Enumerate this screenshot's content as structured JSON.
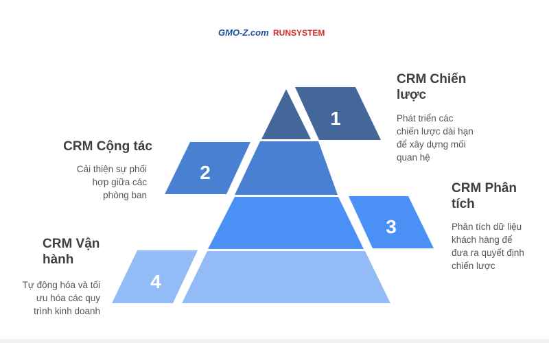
{
  "logo": {
    "part1": "GMO-Z.com",
    "part2": "RUNSYSTEM",
    "color1": "#1f4f9e",
    "color2": "#d62b2b"
  },
  "tiers": [
    {
      "number": "1",
      "title": [
        "CRM Chiến",
        "lược"
      ],
      "description": [
        "Phát triển các",
        "chiến lược dài hạn",
        "để xây dựng mối",
        "quan hệ"
      ],
      "color": "#44679a"
    },
    {
      "number": "2",
      "title": [
        "CRM Cộng tác"
      ],
      "description": [
        "Cải thiện sự phối",
        "hợp giữa các",
        "phòng ban"
      ],
      "color": "#4a80d2"
    },
    {
      "number": "3",
      "title": [
        "CRM Phân",
        "tích"
      ],
      "description": [
        "Phân tích dữ liệu",
        "khách hàng để",
        "đưa ra quyết định",
        "chiến lược"
      ],
      "color": "#4b91f5"
    },
    {
      "number": "4",
      "title": [
        "CRM Vận",
        "hành"
      ],
      "description": [
        "Tự động hóa và tối",
        "ưu hóa các quy",
        "trình kinh doanh"
      ],
      "color": "#93bcf7"
    }
  ]
}
